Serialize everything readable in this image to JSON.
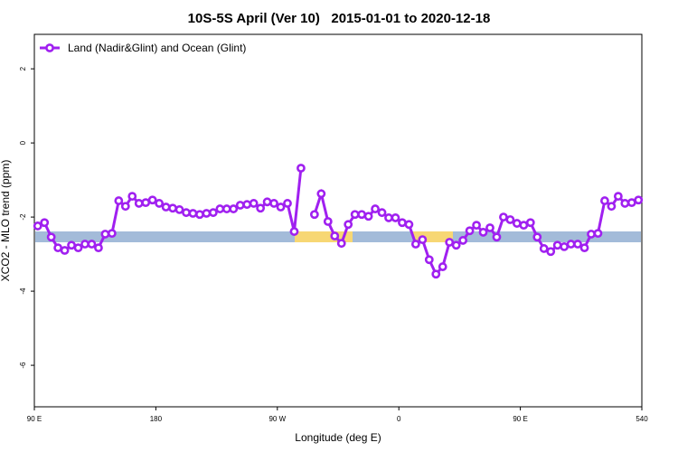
{
  "chart_data": {
    "type": "line",
    "title": "10S-5S April (Ver 10)   2015-01-01 to 2020-12-18",
    "x_label": "Longitude (deg E)",
    "y_label": "XCO2 - MLO trend (ppm)",
    "x": [
      92.5,
      97.5,
      102.5,
      107.5,
      112.5,
      117.5,
      122.5,
      127.5,
      132.5,
      137.5,
      142.5,
      147.5,
      152.5,
      157.5,
      162.5,
      167.5,
      172.5,
      177.5,
      182.5,
      187.5,
      192.5,
      197.5,
      202.5,
      207.5,
      212.5,
      217.5,
      222.5,
      227.5,
      232.5,
      237.5,
      242.5,
      247.5,
      252.5,
      257.5,
      262.5,
      267.5,
      272.5,
      277.5,
      282.5,
      287.5,
      292.5,
      297.5,
      302.5,
      307.5,
      312.5,
      317.5,
      322.5,
      327.5,
      332.5,
      337.5,
      342.5,
      347.5,
      352.5,
      357.5,
      362.5,
      367.5,
      372.5,
      377.5,
      382.5,
      387.5,
      392.5,
      397.5,
      402.5,
      407.5,
      412.5,
      417.5,
      422.5,
      427.5,
      432.5,
      437.5,
      442.5,
      447.5,
      452.5,
      457.5,
      462.5,
      467.5,
      472.5,
      477.5,
      482.5,
      487.5,
      492.5,
      497.5,
      502.5,
      507.5,
      512.5,
      517.5,
      522.5,
      527.5,
      532.5,
      537.5
    ],
    "series": [
      {
        "name": "Land (Nadir&Glint) and Ocean (Glint)",
        "color": "#a020f0",
        "values": [
          -2.24,
          -2.15,
          -2.54,
          -2.83,
          -2.9,
          -2.76,
          -2.83,
          -2.73,
          -2.73,
          -2.83,
          -2.46,
          -2.44,
          -1.56,
          -1.71,
          -1.44,
          -1.63,
          -1.61,
          -1.54,
          -1.63,
          -1.73,
          -1.76,
          -1.8,
          -1.88,
          -1.9,
          -1.93,
          -1.9,
          -1.88,
          -1.78,
          -1.78,
          -1.78,
          -1.68,
          -1.66,
          -1.63,
          -1.76,
          -1.59,
          -1.63,
          -1.73,
          -1.63,
          -2.39,
          -0.68,
          null,
          -1.93,
          -1.37,
          -2.12,
          -2.51,
          -2.71,
          -2.2,
          -1.93,
          -1.93,
          -1.98,
          -1.78,
          -1.88,
          -2.02,
          -2.02,
          -2.15,
          -2.2,
          -2.73,
          -2.61,
          -3.15,
          -3.54,
          -3.34,
          -2.68,
          -2.76,
          -2.63,
          -2.37,
          -2.22,
          -2.41,
          -2.29,
          -2.54,
          -2.0,
          -2.07,
          -2.17,
          -2.22,
          -2.15,
          -2.54,
          -2.85,
          -2.93,
          -2.76,
          -2.8,
          -2.73,
          -2.73,
          -2.83,
          -2.46,
          -2.44,
          -1.56,
          -1.71,
          -1.44,
          -1.63,
          -1.61,
          -1.54
        ]
      }
    ],
    "xlim": [
      90,
      540
    ],
    "xticks": [
      {
        "value": 90,
        "label": "90 E"
      },
      180,
      {
        "value": 270,
        "label": "90 W"
      },
      {
        "value": 360,
        "label": "0"
      },
      {
        "value": 450,
        "label": "90 E"
      },
      540
    ],
    "ylim": [
      -7.12,
      2.93
    ],
    "yticks": [
      2,
      0,
      -2,
      -4,
      -6
    ],
    "legend": "top-left"
  }
}
